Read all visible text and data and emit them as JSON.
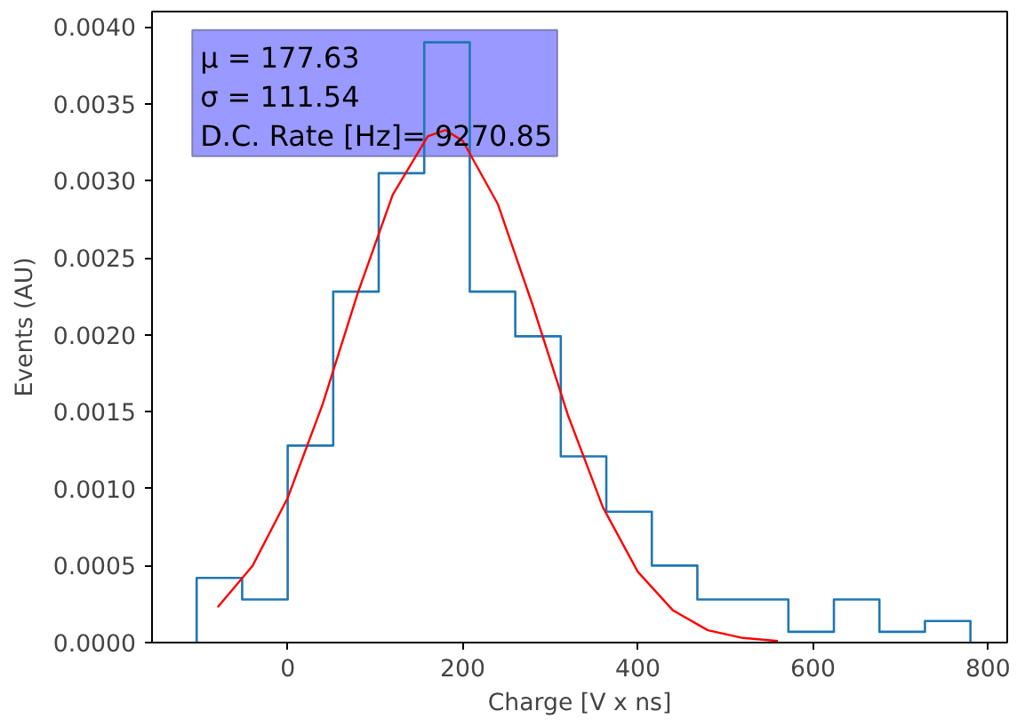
{
  "chart_data": {
    "type": "histogram",
    "xlabel": "Charge [V x ns]",
    "ylabel": "Events (AU)",
    "bins": [
      -104,
      -52,
      0,
      52,
      104,
      156,
      208,
      260,
      312,
      364,
      416,
      468,
      520,
      572,
      624,
      676,
      728,
      780
    ],
    "values": [
      0.00042,
      0.00028,
      0.00128,
      0.00228,
      0.00305,
      0.0039,
      0.00228,
      0.00199,
      0.00121,
      0.00085,
      0.0005,
      0.00028,
      0.00028,
      7e-05,
      0.00028,
      7e-05,
      0.00014
    ],
    "color": "#1f77b4",
    "series": [
      {
        "type": "line",
        "color": "#ff0000",
        "x": [
          -80,
          -40,
          0,
          40,
          80,
          120,
          160,
          180,
          200,
          240,
          280,
          320,
          360,
          400,
          440,
          480,
          520,
          560
        ],
        "values": [
          0.00023,
          0.0005,
          0.00094,
          0.00155,
          0.00227,
          0.00291,
          0.00329,
          0.00333,
          0.00326,
          0.00285,
          0.00219,
          0.00148,
          0.00088,
          0.00046,
          0.00021,
          8e-05,
          3e-05,
          1e-05
        ]
      }
    ],
    "annotations": [
      "μ = 177.63",
      "σ = 111.54",
      "D.C. Rate [Hz]= 9270.85"
    ],
    "xlim": [
      -155,
      822
    ],
    "ylim": [
      0,
      0.0041
    ],
    "xticks": [
      0,
      200,
      400,
      600,
      800
    ],
    "yticks": [
      {
        "value": 0,
        "label": "0.0000"
      },
      {
        "value": 0.0005,
        "label": "0.0005"
      },
      {
        "value": 0.001,
        "label": "0.0010"
      },
      {
        "value": 0.0015,
        "label": "0.0015"
      },
      {
        "value": 0.002,
        "label": "0.0020"
      },
      {
        "value": 0.0025,
        "label": "0.0025"
      },
      {
        "value": 0.003,
        "label": "0.0030"
      },
      {
        "value": 0.0035,
        "label": "0.0035"
      },
      {
        "value": 0.004,
        "label": "0.0040"
      }
    ],
    "grid": false
  }
}
